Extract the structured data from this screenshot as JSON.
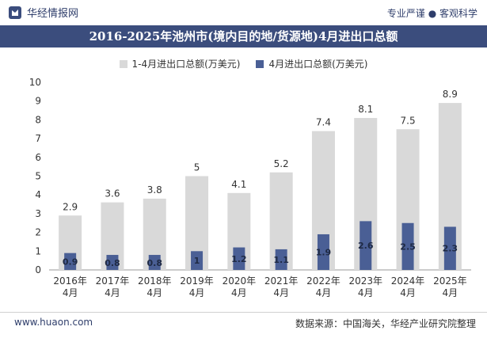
{
  "header": {
    "brand": "华经情报网",
    "tagline": "专业严谨 ● 客观科学"
  },
  "colors": {
    "title_bg": "#3b4d7d",
    "series1": "#d9d9d9",
    "series2": "#4a5f95"
  },
  "chart_data": {
    "type": "bar",
    "title": "2016-2025年池州市(境内目的地/货源地)4月进出口总额",
    "categories": [
      "2016年\n4月",
      "2017年\n4月",
      "2018年\n4月",
      "2019年\n4月",
      "2020年\n4月",
      "2021年\n4月",
      "2022年\n4月",
      "2023年\n4月",
      "2024年\n4月",
      "2025年\n4月"
    ],
    "series": [
      {
        "name": "1-4月进出口总额(万美元)",
        "values": [
          2.9,
          3.6,
          3.8,
          5,
          4.1,
          5.2,
          7.4,
          8.1,
          7.5,
          8.9
        ]
      },
      {
        "name": "4月进出口总额(万美元)",
        "values": [
          0.9,
          0.8,
          0.8,
          1,
          1.2,
          1.1,
          1.9,
          2.6,
          2.5,
          2.3
        ]
      }
    ],
    "ylim": [
      0,
      10
    ],
    "yticks": [
      0,
      1,
      2,
      3,
      4,
      5,
      6,
      7,
      8,
      9,
      10
    ],
    "grid": false,
    "legend": "top-center"
  },
  "footer": {
    "site": "www.huaon.com",
    "source": "数据来源：中国海关，华经产业研究院整理"
  }
}
